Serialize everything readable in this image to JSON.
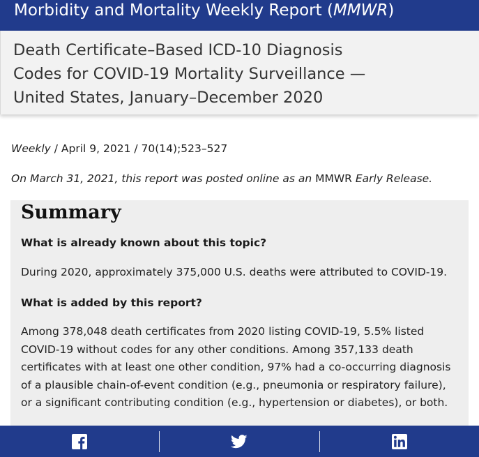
{
  "header": {
    "banner_prefix": "Morbidity and Mortality Weekly Report (",
    "banner_abbrev": "MMWR",
    "banner_suffix": ")"
  },
  "article": {
    "title": "Death Certificate–Based ICD-10 Diagnosis Codes for COVID-19 Mortality Surveillance — United States, January–December 2020",
    "series": "Weekly",
    "citation": " / April 9, 2021 / 70(14);523–527",
    "release_prefix": "On March 31, 2021, this report was posted online as an ",
    "release_mmwr": "MMWR",
    "release_suffix": " Early Release."
  },
  "summary": {
    "heading": "Summary",
    "question_1": "What is already known about this topic?",
    "answer_1": "During 2020, approximately 375,000 U.S. deaths were attributed to COVID-19.",
    "question_2": "What is added by this report?",
    "answer_2": "Among 378,048 death certificates from 2020 listing COVID-19, 5.5% listed COVID-19 without codes for any other conditions. Among 357,133 death certificates with at least one other condition, 97% had a co-occurring diagnosis of a plausible chain-of-event condition (e.g., pneumonia or respiratory failure), or a significant contributing condition (e.g., hypertension or diabetes), or both."
  },
  "share_bar": {
    "icons": [
      "facebook-icon",
      "twitter-icon",
      "linkedin-icon"
    ],
    "background": "#213b8c"
  }
}
